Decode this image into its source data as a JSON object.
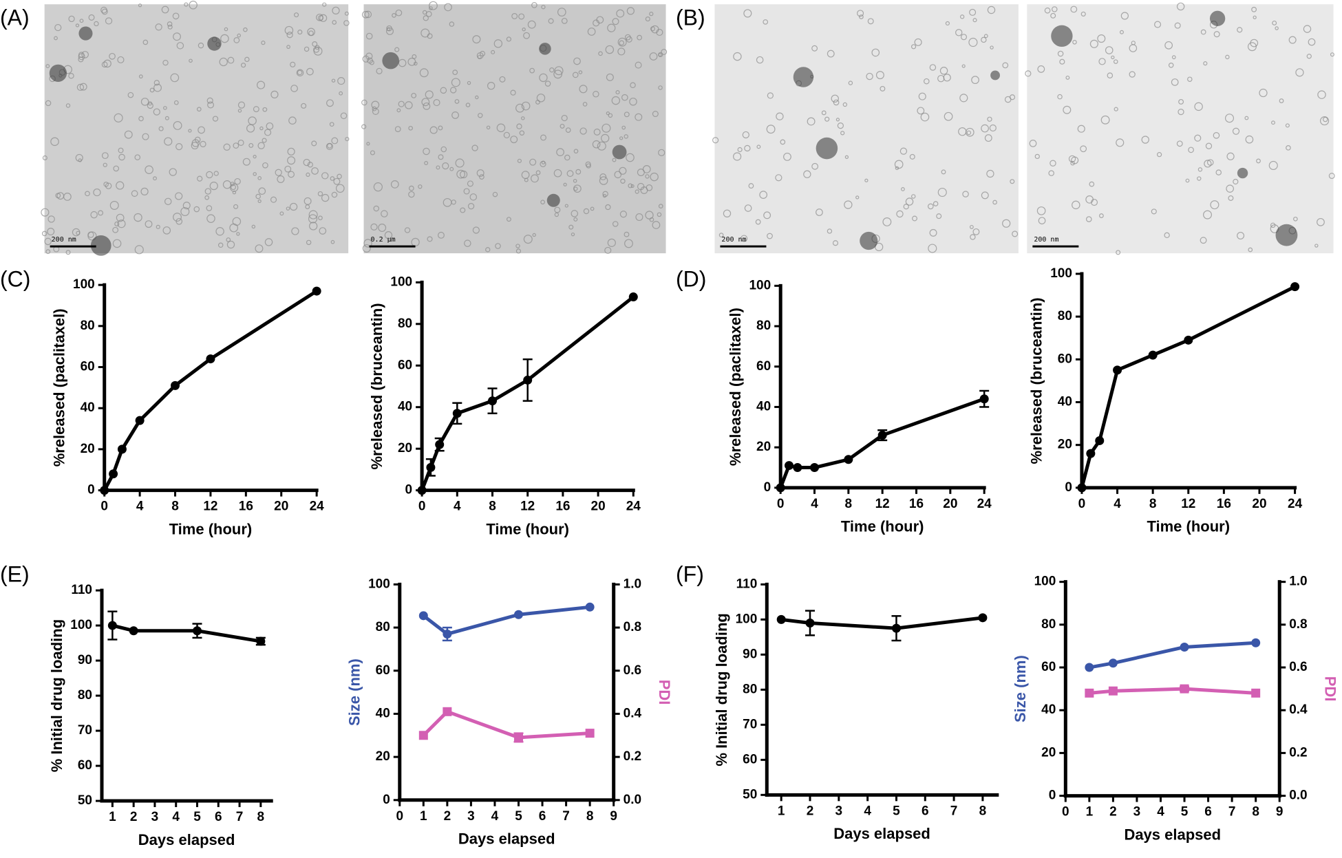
{
  "panels": [
    "(A)",
    "(B)",
    "(C)",
    "(D)",
    "(E)",
    "(F)"
  ],
  "micrographs": [
    {
      "scale_bar": "200 nm"
    },
    {
      "scale_bar": "0.2 µm"
    },
    {
      "scale_bar": "200 nm"
    },
    {
      "scale_bar": "200 nm"
    }
  ],
  "chart_data": [
    {
      "type": "line",
      "x_label": "Time (hour)",
      "y_label": "%released (paclitaxel)",
      "color": "#000000",
      "x": [
        0,
        1,
        2,
        4,
        8,
        12,
        24
      ],
      "values": [
        0,
        8,
        20,
        34,
        51,
        64,
        97
      ],
      "errors": [
        null,
        null,
        null,
        null,
        null,
        null,
        null
      ],
      "xlim": [
        0,
        24
      ],
      "xticks": [
        0,
        4,
        8,
        12,
        16,
        20,
        24
      ],
      "ylim": [
        0,
        100
      ],
      "yticks": [
        0,
        20,
        40,
        60,
        80,
        100
      ]
    },
    {
      "type": "line",
      "x_label": "Time (hour)",
      "y_label": "%released (bruceantin)",
      "color": "#000000",
      "x": [
        0,
        1,
        2,
        4,
        8,
        12,
        24
      ],
      "values": [
        0,
        11,
        22,
        37,
        43,
        53,
        93
      ],
      "errors": [
        null,
        4,
        3,
        5,
        6,
        10,
        null
      ],
      "xlim": [
        0,
        24
      ],
      "xticks": [
        0,
        4,
        8,
        12,
        16,
        20,
        24
      ],
      "ylim": [
        0,
        100
      ],
      "yticks": [
        0,
        20,
        40,
        60,
        80,
        100
      ]
    },
    {
      "type": "line",
      "x_label": "Time (hour)",
      "y_label": "%released (paclitaxel)",
      "color": "#000000",
      "x": [
        0,
        1,
        2,
        4,
        8,
        12,
        24
      ],
      "values": [
        0,
        11,
        10,
        10,
        14,
        26,
        44
      ],
      "errors": [
        null,
        null,
        null,
        null,
        null,
        2.5,
        4
      ],
      "xlim": [
        0,
        24
      ],
      "xticks": [
        0,
        4,
        8,
        12,
        16,
        20,
        24
      ],
      "ylim": [
        0,
        100
      ],
      "yticks": [
        0,
        20,
        40,
        60,
        80,
        100
      ]
    },
    {
      "type": "line",
      "x_label": "Time (hour)",
      "y_label": "%released (bruceantin)",
      "color": "#000000",
      "x": [
        0,
        1,
        2,
        4,
        8,
        12,
        24
      ],
      "values": [
        0,
        16,
        22,
        55,
        62,
        69,
        94
      ],
      "errors": [
        null,
        null,
        null,
        null,
        null,
        null,
        null
      ],
      "xlim": [
        0,
        24
      ],
      "xticks": [
        0,
        4,
        8,
        12,
        16,
        20,
        24
      ],
      "ylim": [
        0,
        100
      ],
      "yticks": [
        0,
        20,
        40,
        60,
        80,
        100
      ]
    },
    {
      "type": "line",
      "x_label": "Days elapsed",
      "y_label": "% Initial drug loading",
      "color": "#000000",
      "x": [
        1,
        2,
        5,
        8
      ],
      "values": [
        100,
        98.5,
        98.5,
        95.5
      ],
      "errors": [
        4,
        null,
        2,
        1
      ],
      "xlim": [
        0.5,
        8.5
      ],
      "xticks": [
        1,
        2,
        3,
        4,
        5,
        6,
        7,
        8
      ],
      "ylim": [
        50,
        110
      ],
      "yticks": [
        50,
        60,
        70,
        80,
        90,
        100,
        110
      ]
    },
    {
      "type": "line",
      "x_label": "Days elapsed",
      "y_label": "Size (nm)",
      "y2_label": "PDI",
      "x": [
        1,
        2,
        5,
        8
      ],
      "series": [
        {
          "color": "#3a56a8",
          "marker": "circle",
          "values": [
            85.5,
            77,
            86,
            89.5
          ],
          "errors": [
            null,
            3,
            null,
            null
          ]
        },
        {
          "color": "#d35fb3",
          "marker": "square",
          "axis": "y2",
          "values": [
            0.3,
            0.41,
            0.29,
            0.31
          ],
          "errors": [
            null,
            null,
            0.02,
            null
          ]
        }
      ],
      "xlim": [
        0,
        9
      ],
      "xticks": [
        0,
        1,
        2,
        3,
        4,
        5,
        6,
        7,
        8,
        9
      ],
      "ylim": [
        0,
        100
      ],
      "yticks": [
        0,
        20,
        40,
        60,
        80,
        100
      ],
      "y2lim": [
        0,
        1
      ],
      "y2ticks": [
        {
          "value": 0,
          "label": "0.0"
        },
        0.2,
        0.4,
        0.6,
        0.8,
        {
          "value": 1,
          "label": "1.0"
        }
      ]
    },
    {
      "type": "line",
      "x_label": "Days elapsed",
      "y_label": "% Initial drug loading",
      "color": "#000000",
      "x": [
        1,
        2,
        5,
        8
      ],
      "values": [
        100,
        99,
        97.5,
        100.5
      ],
      "errors": [
        null,
        3.5,
        3.5,
        null
      ],
      "xlim": [
        0.5,
        8.5
      ],
      "xticks": [
        1,
        2,
        3,
        4,
        5,
        6,
        7,
        8
      ],
      "ylim": [
        50,
        110
      ],
      "yticks": [
        50,
        60,
        70,
        80,
        90,
        100,
        110
      ]
    },
    {
      "type": "line",
      "x_label": "Days elapsed",
      "y_label": "Size (nm)",
      "y2_label": "PDI",
      "x": [
        1,
        2,
        5,
        8
      ],
      "series": [
        {
          "color": "#3a56a8",
          "marker": "circle",
          "values": [
            60,
            62,
            69.5,
            71.5
          ],
          "errors": [
            null,
            null,
            null,
            null
          ]
        },
        {
          "color": "#d35fb3",
          "marker": "square",
          "axis": "y2",
          "values": [
            0.48,
            0.49,
            0.5,
            0.48
          ],
          "errors": [
            null,
            null,
            0.01,
            null
          ]
        }
      ],
      "xlim": [
        0,
        9
      ],
      "xticks": [
        0,
        1,
        2,
        3,
        4,
        5,
        6,
        7,
        8,
        9
      ],
      "ylim": [
        0,
        100
      ],
      "yticks": [
        0,
        20,
        40,
        60,
        80,
        100
      ],
      "y2lim": [
        0,
        1
      ],
      "y2ticks": [
        {
          "value": 0,
          "label": "0.0"
        },
        0.2,
        0.4,
        0.6,
        0.8,
        {
          "value": 1,
          "label": "1.0"
        }
      ]
    }
  ]
}
